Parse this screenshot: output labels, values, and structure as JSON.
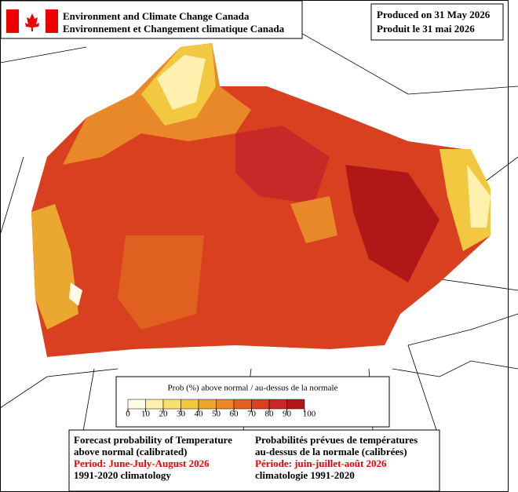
{
  "header": {
    "agency_en": "Environment and Climate Change Canada",
    "agency_fr": "Environnement et Changement climatique Canada",
    "produced_en": "Produced on 31 May 2026",
    "produced_fr": "Produit le 31 mai 2026"
  },
  "legend": {
    "title": "Prob (%) above normal / au-dessus de la normale",
    "ticks": [
      0,
      10,
      20,
      30,
      40,
      50,
      60,
      70,
      80,
      90,
      100
    ],
    "colors": [
      "#fffbe6",
      "#fff0b0",
      "#f8e070",
      "#f2c840",
      "#eaa830",
      "#e88828",
      "#e06020",
      "#d84020",
      "#c82828",
      "#b01818"
    ]
  },
  "footer": {
    "left": [
      "Forecast probability of Temperature",
      "above normal (calibrated)",
      "Period: June-July-August 2026",
      "1991-2020 climatology"
    ],
    "right": [
      "Probabilités prévues de températures",
      "au-dessus de la normale (calibrées)",
      "Période: juin-juillet-août 2026",
      "climatologie 1991-2020"
    ]
  }
}
